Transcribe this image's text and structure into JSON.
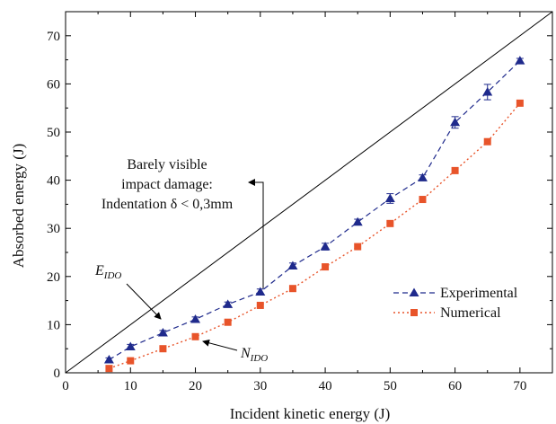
{
  "chart_data": {
    "type": "line",
    "xlabel": "Incident kinetic energy (J)",
    "ylabel": "Absorbed energy (J)",
    "xlim": [
      0,
      75
    ],
    "ylim": [
      0,
      75
    ],
    "x_ticks": [
      0,
      10,
      20,
      30,
      40,
      50,
      60,
      70
    ],
    "y_ticks": [
      0,
      10,
      20,
      30,
      40,
      50,
      60,
      70
    ],
    "grid": false,
    "legend_position": "bottom-right",
    "reference_line": {
      "from": [
        0,
        0
      ],
      "to": [
        75,
        75
      ],
      "color": "#000000"
    },
    "series": [
      {
        "name": "Experimental",
        "color": "#1f2a8c",
        "marker": "triangle",
        "line_style": "dashed",
        "x": [
          6.7,
          10,
          15,
          20,
          25,
          30,
          35,
          40,
          45,
          50,
          55,
          60,
          65,
          70
        ],
        "y": [
          2.7,
          5.4,
          8.3,
          11.1,
          14.2,
          16.8,
          22.2,
          26.2,
          31.3,
          36.2,
          40.5,
          52.0,
          58.3,
          64.8
        ],
        "error": [
          0.4,
          0.5,
          0.5,
          0.5,
          0.5,
          0.6,
          0.6,
          0.7,
          0.6,
          1.0,
          0.6,
          1.2,
          1.6,
          0.5
        ]
      },
      {
        "name": "Numerical",
        "color": "#e8542a",
        "marker": "square",
        "line_style": "dotted",
        "x": [
          6.7,
          10,
          15,
          20,
          25,
          30,
          35,
          40,
          45,
          50,
          55,
          60,
          65,
          70
        ],
        "y": [
          0.9,
          2.5,
          5.0,
          7.5,
          10.5,
          14.0,
          17.5,
          22.0,
          26.2,
          31.0,
          36.0,
          42.0,
          48.0,
          56.0
        ]
      }
    ],
    "annotations": {
      "bvid_lines": [
        "Barely visible",
        "impact damage:",
        "Indentation δ < 0,3mm"
      ],
      "eido_main": "E",
      "eido_sub": "IDO",
      "nido_main": "N",
      "nido_sub": "IDO"
    }
  }
}
